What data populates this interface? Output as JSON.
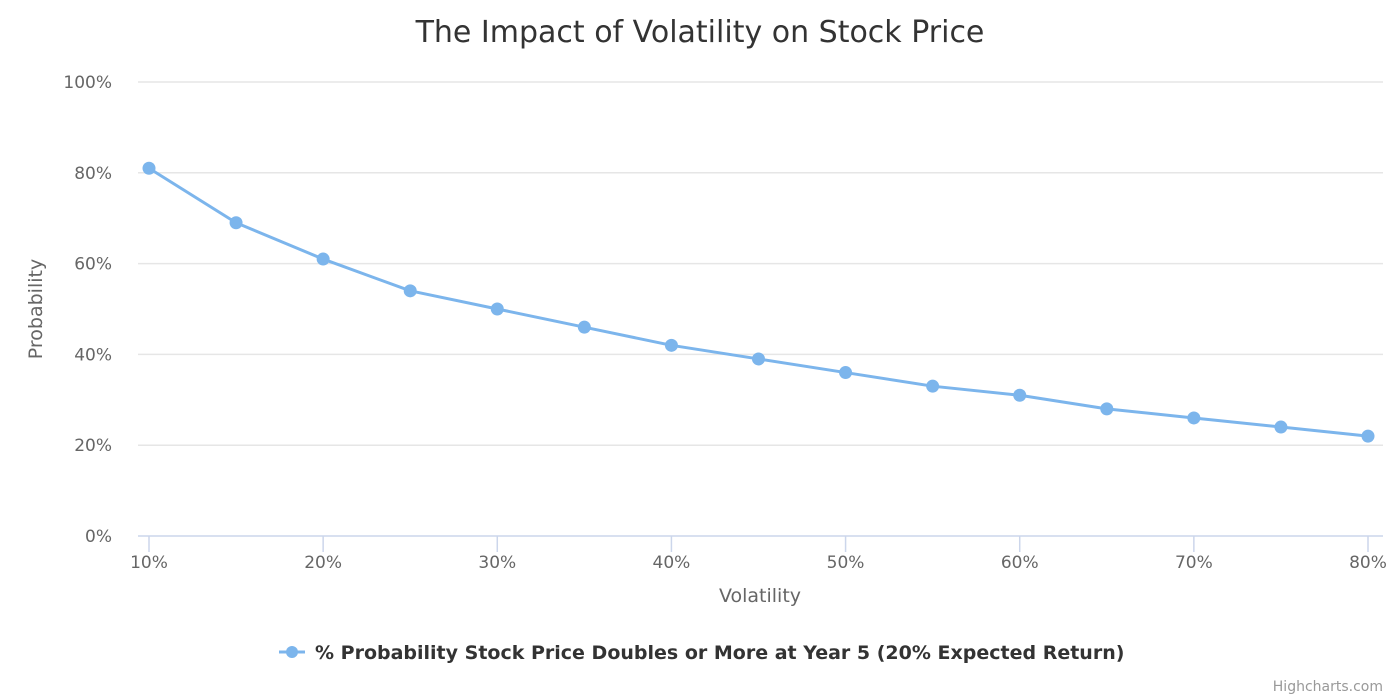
{
  "chart_data": {
    "type": "line",
    "title": "The Impact of Volatility on Stock Price",
    "xlabel": "Volatility",
    "ylabel": "Probability",
    "x": [
      10,
      15,
      20,
      25,
      30,
      35,
      40,
      45,
      50,
      55,
      60,
      65,
      70,
      75,
      80
    ],
    "x_unit": "%",
    "xlim": [
      10,
      80
    ],
    "x_ticks": [
      "10%",
      "20%",
      "30%",
      "40%",
      "50%",
      "60%",
      "70%",
      "80%"
    ],
    "ylim": [
      0,
      100
    ],
    "y_ticks": [
      "0%",
      "20%",
      "40%",
      "60%",
      "80%",
      "100%"
    ],
    "grid": true,
    "legend_position": "bottom-center",
    "series": [
      {
        "name": "% Probability Stock Price Doubles or More at Year 5 (20% Expected Return)",
        "color": "#7cb5ec",
        "values": [
          81,
          69,
          61,
          54,
          50,
          46,
          42,
          39,
          36,
          33,
          31,
          28,
          26,
          24,
          22
        ]
      }
    ]
  },
  "credits": "Highcharts.com"
}
